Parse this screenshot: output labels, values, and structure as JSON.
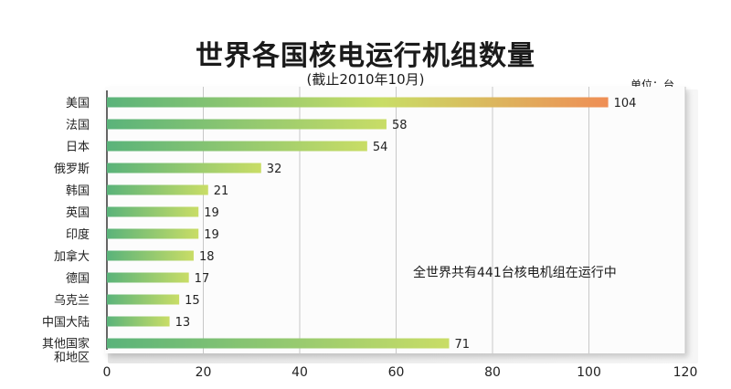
{
  "chart_data": {
    "type": "bar",
    "orientation": "horizontal",
    "title": "世界各国核电运行机组数量",
    "subtitle": "(截止2010年10月)",
    "unit": "单位：台",
    "categories": [
      "美国",
      "法国",
      "日本",
      "俄罗斯",
      "韩国",
      "英国",
      "印度",
      "加拿大",
      "德国",
      "乌克兰",
      "中国大陆",
      "其他国家\n和地区"
    ],
    "values": [
      104,
      58,
      54,
      32,
      21,
      19,
      19,
      18,
      17,
      15,
      13,
      71
    ],
    "xlim": [
      0,
      120
    ],
    "xticks": [
      0,
      20,
      40,
      60,
      80,
      100,
      120
    ],
    "grid": true,
    "annotation": "全世界共有441台核电机组在运行中",
    "colors": {
      "bar_start": "#5ab37a",
      "bar_end": "#c9dd66",
      "bar_end_max": "#ef8e55",
      "grid": "#c8c8c8",
      "axis": "#333333"
    }
  }
}
